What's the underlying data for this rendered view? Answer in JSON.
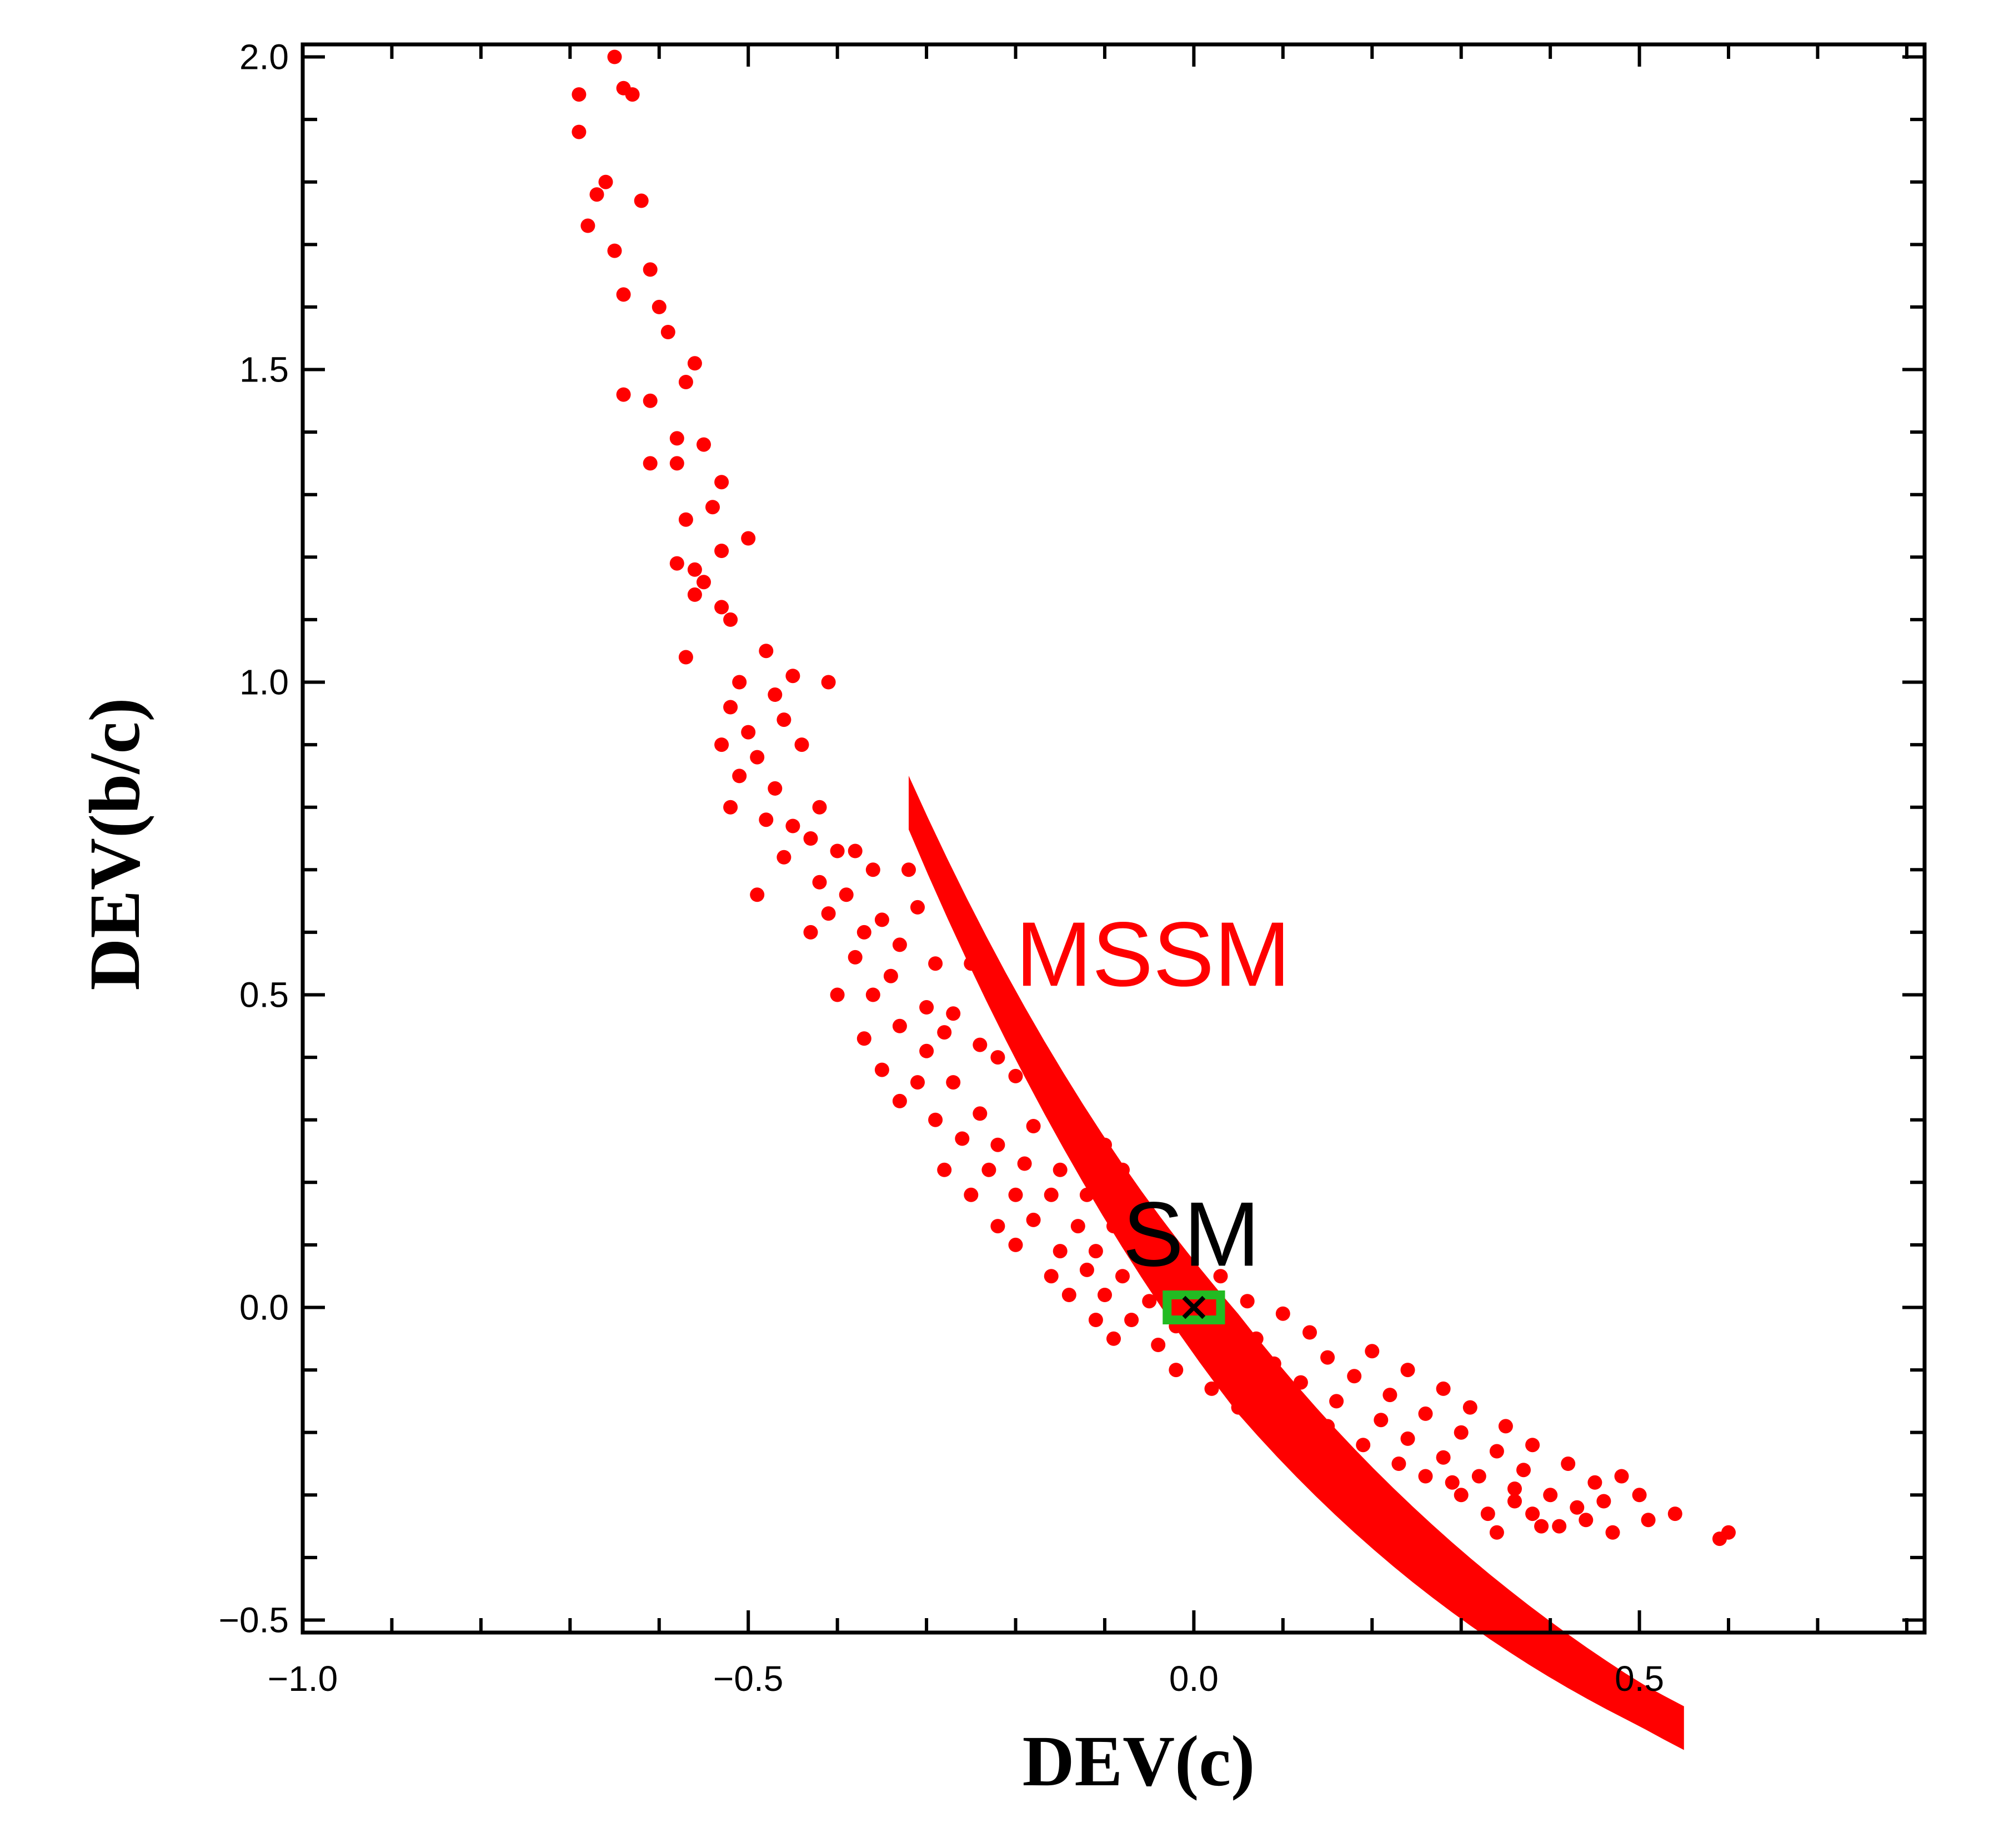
{
  "chart_data": {
    "type": "scatter",
    "title": "",
    "xlabel": "DEV(c)",
    "ylabel": "DEV(b/c)",
    "xlim": [
      -1.0,
      0.82
    ],
    "ylim": [
      -0.52,
      2.02
    ],
    "xticks": [
      -1.0,
      -0.5,
      0.0,
      0.5
    ],
    "xtick_labels": [
      "−1.0",
      "−0.5",
      "0.0",
      "0.5"
    ],
    "yticks": [
      -0.5,
      0.0,
      0.5,
      1.0,
      1.5,
      2.0
    ],
    "ytick_labels": [
      "−0.5",
      "0.0",
      "0.5",
      "1.0",
      "1.5",
      "2.0"
    ],
    "grid": false,
    "colors": {
      "mssm": "#ff0000",
      "sm_marker": "#000000",
      "sm_box": "#22bb22",
      "axis": "#000000"
    },
    "series": [
      {
        "name": "MSSM",
        "color": "#ff0000",
        "relation": "y = 1.1*(exp(-1.72*x) - 1)",
        "points": [
          [
            -0.65,
            2.0
          ],
          [
            -0.69,
            1.94
          ],
          [
            -0.64,
            1.95
          ],
          [
            -0.63,
            1.94
          ],
          [
            -0.69,
            1.88
          ],
          [
            -0.66,
            1.8
          ],
          [
            -0.67,
            1.78
          ],
          [
            -0.62,
            1.77
          ],
          [
            -0.68,
            1.73
          ],
          [
            -0.65,
            1.69
          ],
          [
            -0.61,
            1.66
          ],
          [
            -0.6,
            1.6
          ],
          [
            -0.64,
            1.62
          ],
          [
            -0.59,
            1.56
          ],
          [
            -0.56,
            1.51
          ],
          [
            -0.57,
            1.48
          ],
          [
            -0.64,
            1.46
          ],
          [
            -0.61,
            1.45
          ],
          [
            -0.55,
            1.38
          ],
          [
            -0.58,
            1.39
          ],
          [
            -0.53,
            1.32
          ],
          [
            -0.61,
            1.35
          ],
          [
            -0.58,
            1.35
          ],
          [
            -0.54,
            1.28
          ],
          [
            -0.57,
            1.26
          ],
          [
            -0.5,
            1.23
          ],
          [
            -0.53,
            1.21
          ],
          [
            -0.58,
            1.19
          ],
          [
            -0.56,
            1.18
          ],
          [
            -0.55,
            1.16
          ],
          [
            -0.56,
            1.14
          ],
          [
            -0.53,
            1.12
          ],
          [
            -0.52,
            1.1
          ],
          [
            -0.57,
            1.04
          ],
          [
            -0.51,
            1.0
          ],
          [
            -0.48,
            1.05
          ],
          [
            -0.45,
            1.01
          ],
          [
            -0.41,
            1.0
          ],
          [
            -0.47,
            0.98
          ],
          [
            -0.52,
            0.96
          ],
          [
            -0.5,
            0.92
          ],
          [
            -0.46,
            0.94
          ],
          [
            -0.53,
            0.9
          ],
          [
            -0.49,
            0.88
          ],
          [
            -0.44,
            0.9
          ],
          [
            -0.51,
            0.85
          ],
          [
            -0.47,
            0.83
          ],
          [
            -0.52,
            0.8
          ],
          [
            -0.48,
            0.78
          ],
          [
            -0.42,
            0.8
          ],
          [
            -0.45,
            0.77
          ],
          [
            -0.43,
            0.75
          ],
          [
            -0.4,
            0.73
          ],
          [
            -0.46,
            0.72
          ],
          [
            -0.38,
            0.73
          ],
          [
            -0.36,
            0.7
          ],
          [
            -0.42,
            0.68
          ],
          [
            -0.49,
            0.66
          ],
          [
            -0.32,
            0.7
          ],
          [
            -0.39,
            0.66
          ],
          [
            -0.41,
            0.63
          ],
          [
            -0.35,
            0.62
          ],
          [
            -0.37,
            0.6
          ],
          [
            -0.43,
            0.6
          ],
          [
            -0.31,
            0.64
          ],
          [
            -0.33,
            0.58
          ],
          [
            -0.38,
            0.56
          ],
          [
            -0.34,
            0.53
          ],
          [
            -0.29,
            0.55
          ],
          [
            -0.25,
            0.55
          ],
          [
            -0.4,
            0.5
          ],
          [
            -0.36,
            0.5
          ],
          [
            -0.3,
            0.48
          ],
          [
            -0.27,
            0.47
          ],
          [
            -0.33,
            0.45
          ],
          [
            -0.28,
            0.44
          ],
          [
            -0.2,
            0.45
          ],
          [
            -0.37,
            0.43
          ],
          [
            -0.3,
            0.41
          ],
          [
            -0.24,
            0.42
          ],
          [
            -0.22,
            0.4
          ],
          [
            -0.35,
            0.38
          ],
          [
            -0.31,
            0.36
          ],
          [
            -0.27,
            0.36
          ],
          [
            -0.2,
            0.37
          ],
          [
            -0.16,
            0.33
          ],
          [
            -0.33,
            0.33
          ],
          [
            -0.29,
            0.3
          ],
          [
            -0.24,
            0.31
          ],
          [
            -0.18,
            0.29
          ],
          [
            -0.26,
            0.27
          ],
          [
            -0.22,
            0.26
          ],
          [
            -0.14,
            0.27
          ],
          [
            -0.1,
            0.26
          ],
          [
            -0.28,
            0.22
          ],
          [
            -0.23,
            0.22
          ],
          [
            -0.19,
            0.23
          ],
          [
            -0.15,
            0.22
          ],
          [
            -0.08,
            0.22
          ],
          [
            -0.25,
            0.18
          ],
          [
            -0.2,
            0.18
          ],
          [
            -0.16,
            0.18
          ],
          [
            -0.12,
            0.18
          ],
          [
            -0.07,
            0.17
          ],
          [
            -0.22,
            0.13
          ],
          [
            -0.18,
            0.14
          ],
          [
            -0.13,
            0.13
          ],
          [
            -0.09,
            0.13
          ],
          [
            -0.04,
            0.12
          ],
          [
            -0.2,
            0.1
          ],
          [
            -0.15,
            0.09
          ],
          [
            -0.11,
            0.09
          ],
          [
            -0.06,
            0.08
          ],
          [
            -0.02,
            0.08
          ],
          [
            -0.16,
            0.05
          ],
          [
            -0.12,
            0.06
          ],
          [
            -0.08,
            0.05
          ],
          [
            -0.03,
            0.04
          ],
          [
            0.03,
            0.05
          ],
          [
            -0.14,
            0.02
          ],
          [
            -0.1,
            0.02
          ],
          [
            -0.05,
            0.01
          ],
          [
            0.0,
            0.01
          ],
          [
            0.06,
            0.01
          ],
          [
            -0.11,
            -0.02
          ],
          [
            -0.07,
            -0.02
          ],
          [
            -0.02,
            -0.03
          ],
          [
            0.04,
            -0.02
          ],
          [
            0.1,
            -0.01
          ],
          [
            -0.09,
            -0.05
          ],
          [
            -0.04,
            -0.06
          ],
          [
            0.02,
            -0.06
          ],
          [
            0.07,
            -0.05
          ],
          [
            0.13,
            -0.04
          ],
          [
            -0.02,
            -0.1
          ],
          [
            0.04,
            -0.09
          ],
          [
            0.09,
            -0.09
          ],
          [
            0.15,
            -0.08
          ],
          [
            0.2,
            -0.07
          ],
          [
            0.02,
            -0.13
          ],
          [
            0.07,
            -0.12
          ],
          [
            0.12,
            -0.12
          ],
          [
            0.18,
            -0.11
          ],
          [
            0.24,
            -0.1
          ],
          [
            0.05,
            -0.16
          ],
          [
            0.11,
            -0.16
          ],
          [
            0.16,
            -0.15
          ],
          [
            0.22,
            -0.14
          ],
          [
            0.28,
            -0.13
          ],
          [
            0.1,
            -0.19
          ],
          [
            0.15,
            -0.19
          ],
          [
            0.21,
            -0.18
          ],
          [
            0.26,
            -0.17
          ],
          [
            0.31,
            -0.16
          ],
          [
            0.13,
            -0.22
          ],
          [
            0.19,
            -0.22
          ],
          [
            0.24,
            -0.21
          ],
          [
            0.3,
            -0.2
          ],
          [
            0.35,
            -0.19
          ],
          [
            0.17,
            -0.25
          ],
          [
            0.23,
            -0.25
          ],
          [
            0.28,
            -0.24
          ],
          [
            0.34,
            -0.23
          ],
          [
            0.38,
            -0.22
          ],
          [
            0.26,
            -0.27
          ],
          [
            0.32,
            -0.27
          ],
          [
            0.37,
            -0.26
          ],
          [
            0.42,
            -0.25
          ],
          [
            0.3,
            -0.3
          ],
          [
            0.36,
            -0.29
          ],
          [
            0.4,
            -0.3
          ],
          [
            0.45,
            -0.28
          ],
          [
            0.48,
            -0.27
          ],
          [
            0.33,
            -0.33
          ],
          [
            0.38,
            -0.33
          ],
          [
            0.43,
            -0.32
          ],
          [
            0.46,
            -0.31
          ],
          [
            0.5,
            -0.3
          ],
          [
            0.34,
            -0.36
          ],
          [
            0.39,
            -0.35
          ],
          [
            0.44,
            -0.34
          ],
          [
            0.47,
            -0.36
          ],
          [
            0.51,
            -0.34
          ],
          [
            0.54,
            -0.33
          ],
          [
            0.59,
            -0.37
          ],
          [
            0.6,
            -0.36
          ],
          [
            0.41,
            -0.35
          ],
          [
            0.36,
            -0.31
          ],
          [
            0.29,
            -0.28
          ]
        ]
      }
    ],
    "annotations": [
      {
        "label": "MSSM",
        "x": -0.2,
        "y": 0.55,
        "color": "#ff0000"
      },
      {
        "label": "SM",
        "x": -0.08,
        "y": 0.12,
        "color": "#000000"
      }
    ],
    "sm_point": {
      "label": "SM",
      "x": 0.0,
      "y": 0.0,
      "marker": "x",
      "error_box": {
        "dx": 0.03,
        "dy": 0.02,
        "color": "#22bb22"
      }
    }
  }
}
